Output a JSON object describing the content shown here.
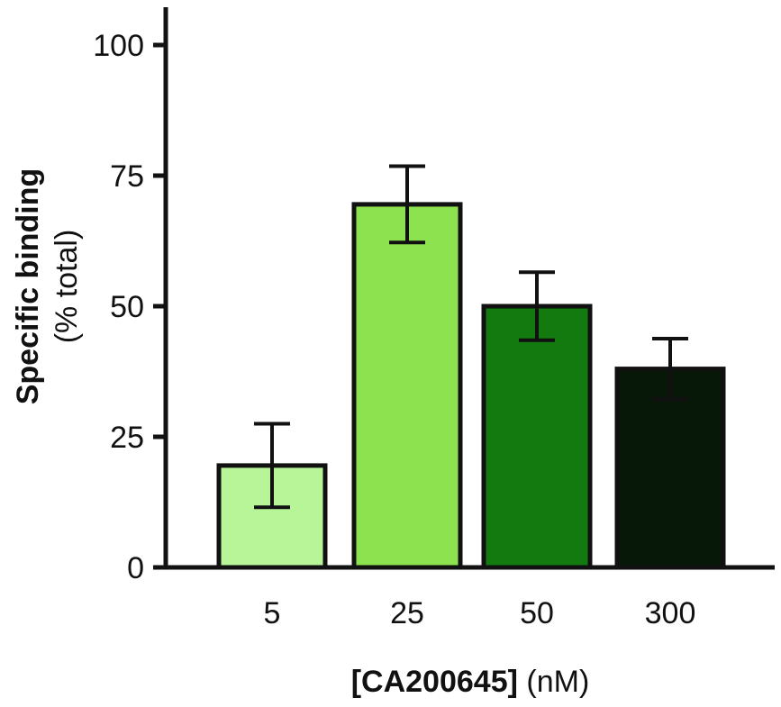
{
  "chart_data": {
    "type": "bar",
    "categories": [
      "5",
      "25",
      "50",
      "300"
    ],
    "values": [
      19.5,
      69.5,
      50.0,
      38.0
    ],
    "error": [
      8.0,
      7.3,
      6.5,
      5.8
    ],
    "colors": [
      "#b8f598",
      "#8ce24f",
      "#137a10",
      "#081808"
    ],
    "ylabel_bold": "Specific binding",
    "ylabel_sub": "(% total)",
    "xlabel_bold": "[CA200645]",
    "xlabel_unit": "(nM)",
    "ylim": [
      0,
      100
    ],
    "yticks": [
      0,
      25,
      50,
      75,
      100
    ],
    "grid": false
  }
}
